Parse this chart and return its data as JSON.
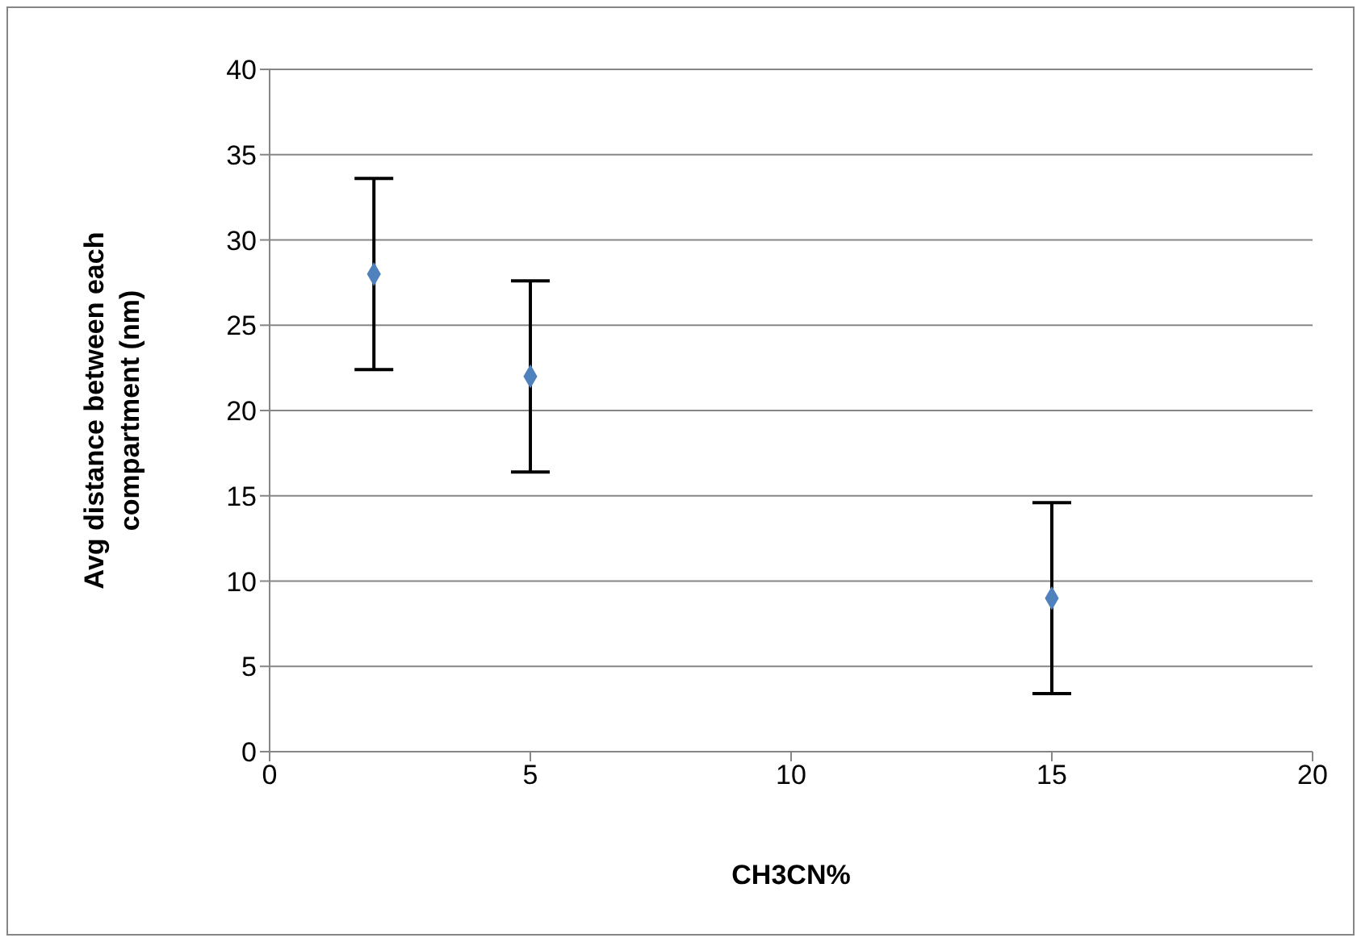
{
  "chart_data": {
    "type": "scatter",
    "xlabel": "CH3CN%",
    "ylabel": "Avg distance between each compartment (nm)",
    "x": [
      2,
      5,
      15
    ],
    "series": [
      {
        "color": "#4f81bd",
        "values": [
          28,
          22,
          9
        ],
        "errors": [
          5.6,
          5.6,
          5.6
        ]
      }
    ],
    "xlim": [
      0,
      20
    ],
    "xticks": [
      0,
      5,
      10,
      15,
      20
    ],
    "ylim": [
      0,
      40
    ],
    "yticks": [
      0,
      5,
      10,
      15,
      20,
      25,
      30,
      35,
      40
    ],
    "grid": "y",
    "legend": false,
    "marker": "diamond"
  }
}
